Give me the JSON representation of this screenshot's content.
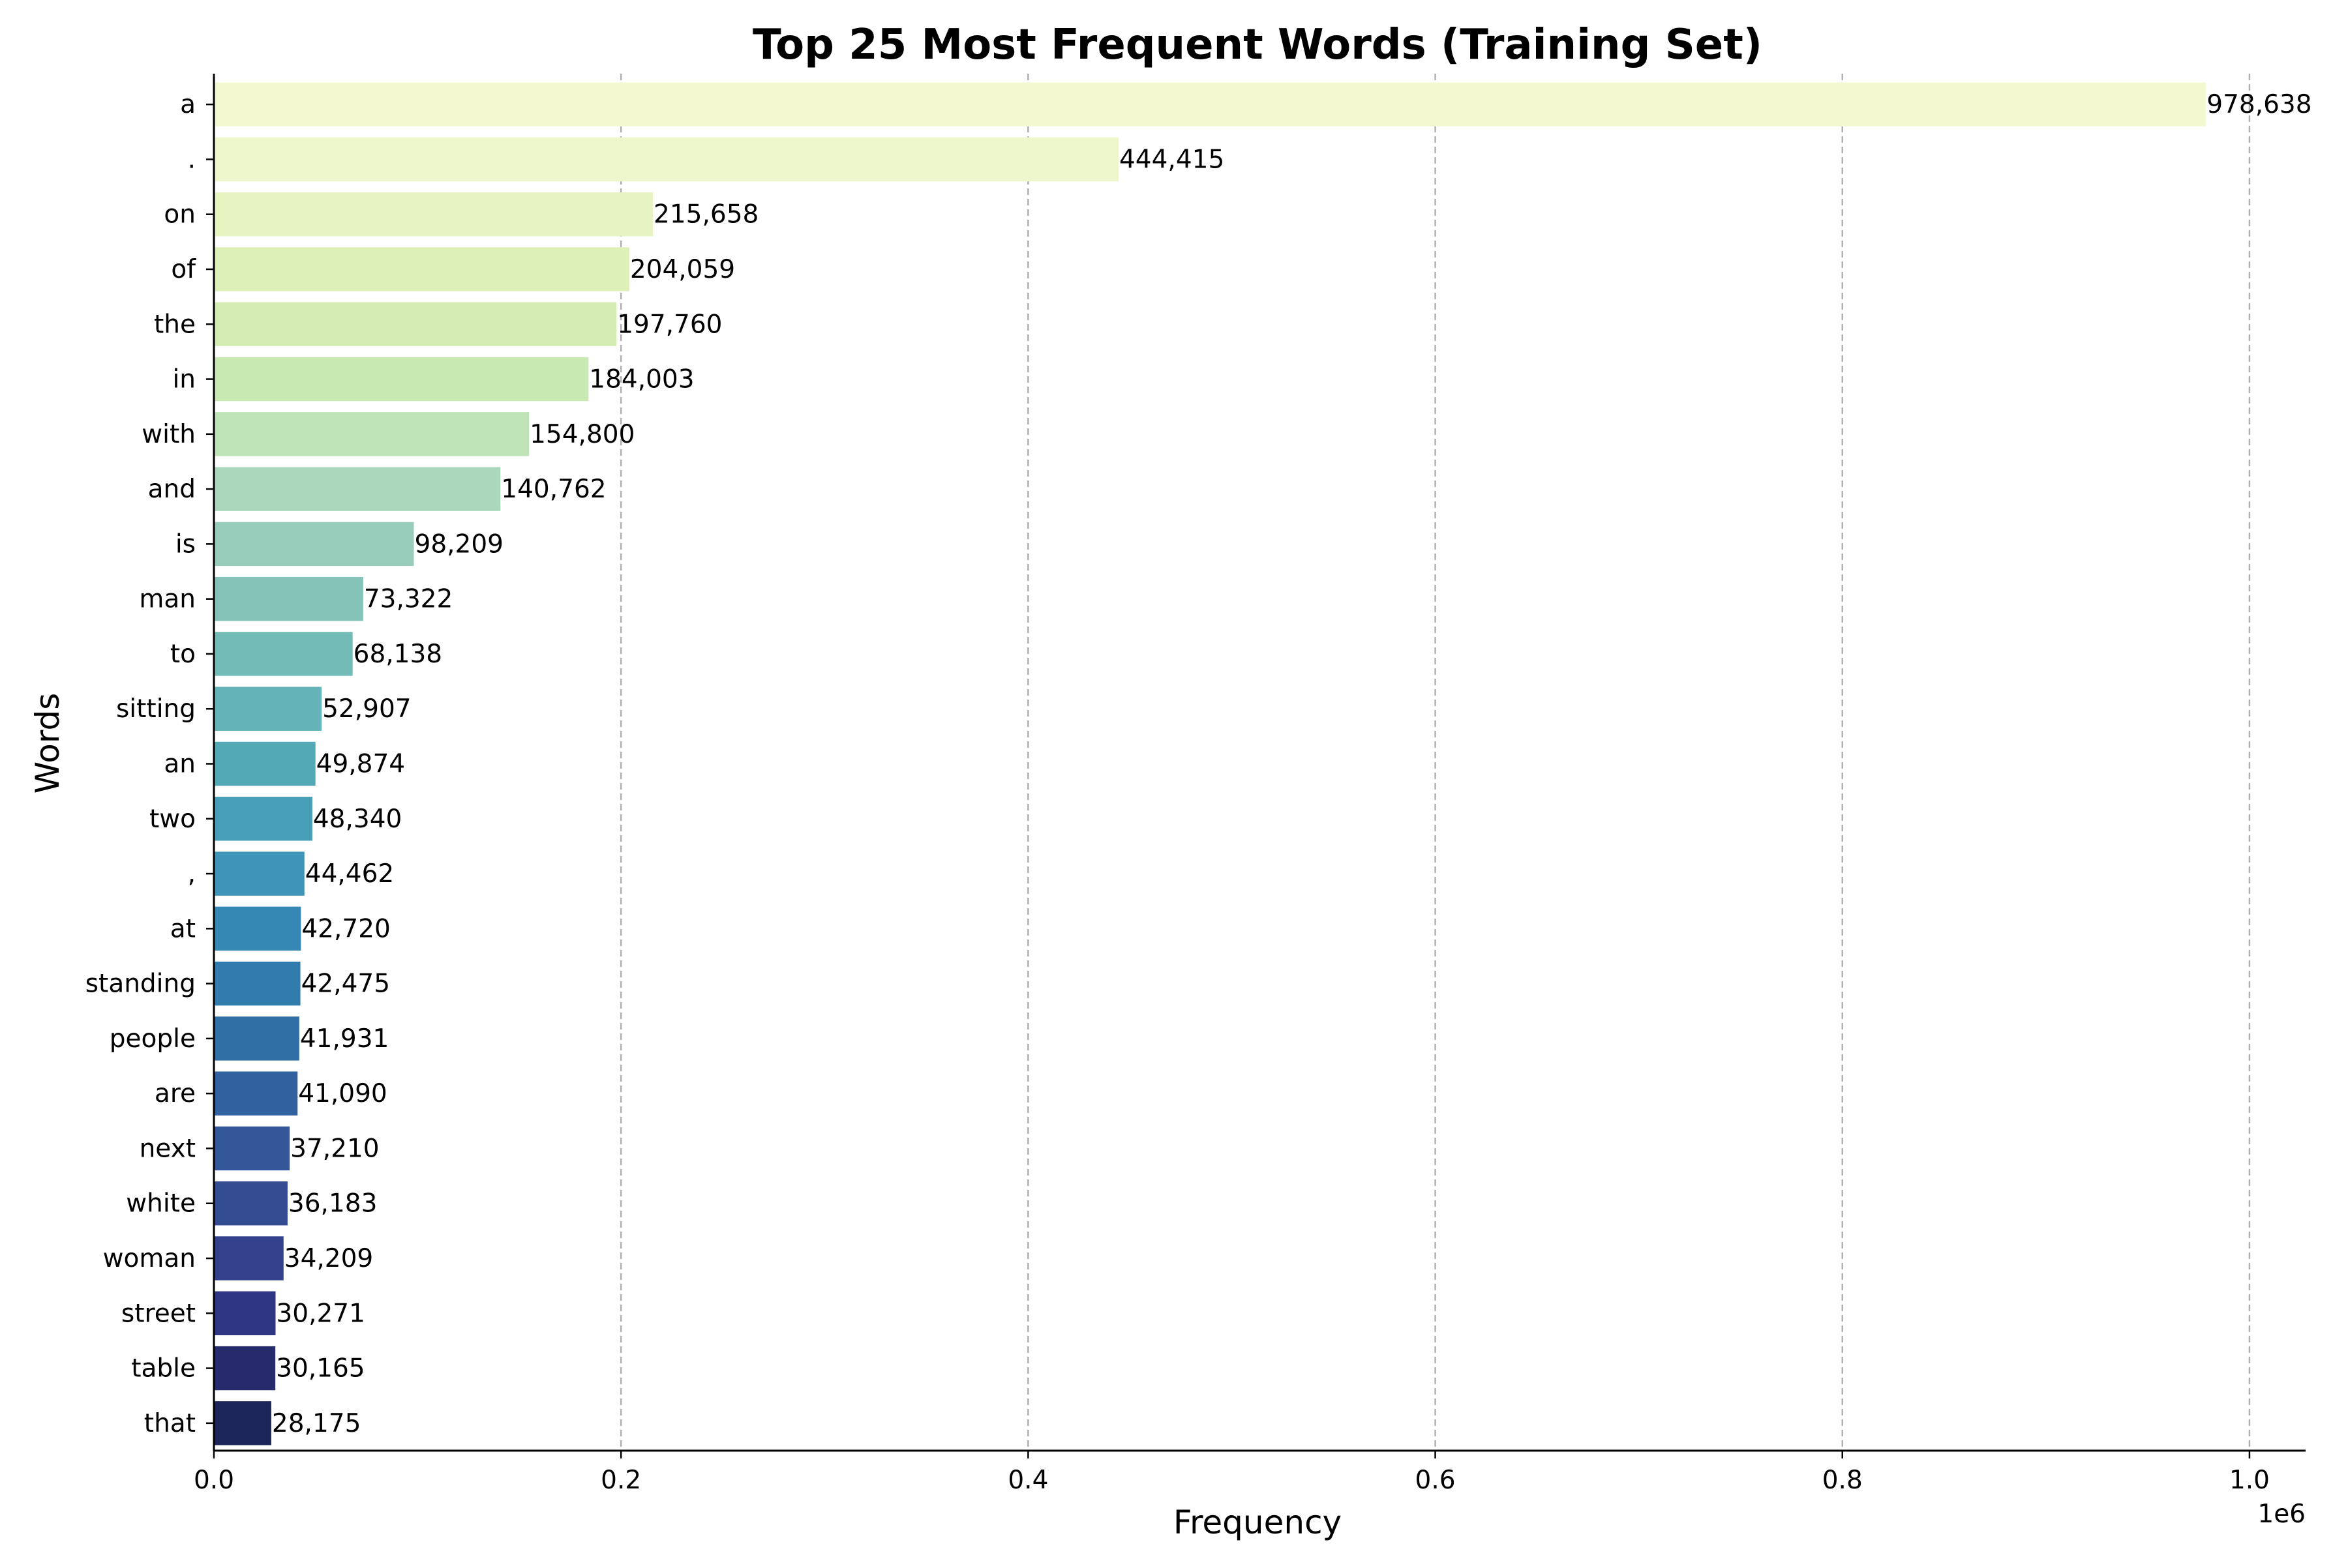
{
  "chart_data": {
    "type": "bar",
    "orientation": "horizontal",
    "title": "Top 25 Most Frequent Words (Training Set)",
    "xlabel": "Frequency",
    "ylabel": "Words",
    "x_offset_label": "1e6",
    "xlim": [
      0,
      1027570
    ],
    "x_ticks": [
      0,
      200000,
      400000,
      600000,
      800000,
      1000000
    ],
    "x_tick_labels": [
      "0.0",
      "0.2",
      "0.4",
      "0.6",
      "0.8",
      "1.0"
    ],
    "grid": "x-axis dashed",
    "categories": [
      "a",
      ".",
      "on",
      "of",
      "the",
      "in",
      "with",
      "and",
      "is",
      "man",
      "to",
      "sitting",
      "an",
      "two",
      ",",
      "at",
      "standing",
      "people",
      "are",
      "next",
      "white",
      "woman",
      "street",
      "table",
      "that"
    ],
    "values": [
      978638,
      444415,
      215658,
      204059,
      197760,
      184003,
      154800,
      140762,
      98209,
      73322,
      68138,
      52907,
      49874,
      48340,
      44462,
      42720,
      42475,
      41931,
      41090,
      37210,
      36183,
      34209,
      30271,
      30165,
      28175
    ],
    "value_labels": [
      "978,638",
      "444,415",
      "215,658",
      "204,059",
      "197,760",
      "184,003",
      "154,800",
      "140,762",
      "98,209",
      "73,322",
      "68,138",
      "52,907",
      "49,874",
      "48,340",
      "44,462",
      "42,720",
      "42,475",
      "41,931",
      "41,090",
      "37,210",
      "36,183",
      "34,209",
      "30,271",
      "30,165",
      "28,175"
    ],
    "colors": [
      "#f3f8d1",
      "#eef7cb",
      "#e6f4c2",
      "#ddf0b8",
      "#d4edb4",
      "#c9e9b2",
      "#bfe4b7",
      "#abd8bc",
      "#98ccbb",
      "#85c2b8",
      "#73bbb6",
      "#63b3b8",
      "#54a9b6",
      "#48a0b8",
      "#3e95b7",
      "#3688b4",
      "#317bad",
      "#306ea6",
      "#31629f",
      "#335798",
      "#344c92",
      "#33418c",
      "#2e3683",
      "#262b6e",
      "#1c2659"
    ]
  }
}
